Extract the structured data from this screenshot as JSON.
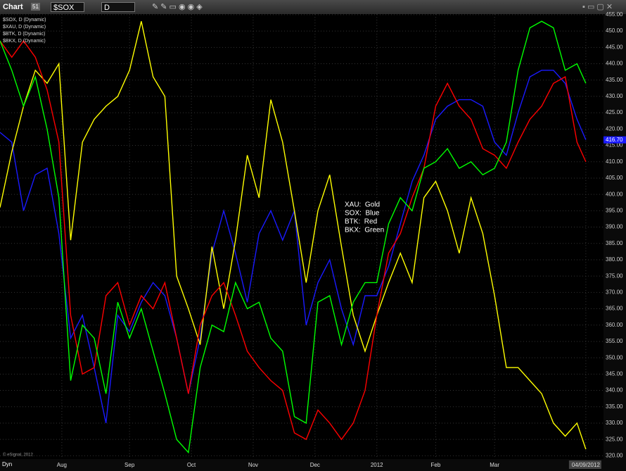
{
  "ui": {
    "window_title": "Chart",
    "badge": "51",
    "symbol": "$SOX",
    "interval": "D",
    "copyright": "© eSignal, 2012",
    "mode": "Dyn"
  },
  "chart_data": {
    "type": "line",
    "x": [
      0,
      4,
      8,
      12,
      16,
      20,
      24,
      28,
      32,
      36,
      40,
      44,
      48,
      52,
      56,
      60,
      64,
      68,
      72,
      76,
      80,
      84,
      88,
      92,
      96,
      100,
      104,
      108,
      112,
      116,
      120,
      124,
      128,
      132,
      136,
      140,
      144,
      148,
      152,
      156,
      160,
      164,
      168,
      172,
      176,
      180,
      184,
      188,
      192,
      196,
      199
    ],
    "series": [
      {
        "name": "$SOX, D (Dynamic)",
        "color": "#1a1aff",
        "values": [
          419,
          416,
          395,
          406,
          408,
          388,
          356,
          363,
          347,
          330,
          363,
          358,
          367,
          373,
          369,
          356,
          339,
          356,
          382,
          395,
          382,
          367,
          388,
          395,
          386,
          395,
          360,
          373,
          380,
          365,
          354,
          369,
          369,
          378,
          391,
          404,
          412,
          423,
          427,
          429,
          429,
          427,
          416,
          412,
          425,
          436,
          438,
          438,
          434,
          423,
          416.7
        ],
        "value_labels": [
          null,
          null,
          null,
          null,
          null,
          null,
          null,
          null,
          null,
          null,
          null,
          null,
          null,
          null,
          null,
          null,
          null,
          null,
          null,
          null,
          null,
          null,
          null,
          null,
          null,
          null,
          null,
          null,
          null,
          null,
          null,
          null,
          null,
          null,
          null,
          null,
          null,
          null,
          null,
          null,
          null,
          null,
          null,
          null,
          null,
          null,
          null,
          null,
          null,
          null,
          "416.70"
        ]
      },
      {
        "name": "$XAU, D (Dynamic)",
        "color": "#ffff00",
        "values": [
          396,
          413,
          427,
          438,
          434,
          440,
          386,
          416,
          423,
          427,
          430,
          438,
          453,
          436,
          430,
          375,
          365,
          354,
          384,
          365,
          386,
          412,
          399,
          429,
          416,
          395,
          373,
          395,
          406,
          384,
          363,
          352,
          363,
          373,
          382,
          373,
          399,
          404,
          395,
          382,
          399,
          388,
          369,
          347,
          347,
          343,
          339,
          330,
          326,
          330,
          322
        ]
      },
      {
        "name": "$BTK, D (Dynamic)",
        "color": "#ff0000",
        "values": [
          447,
          442,
          447,
          442,
          432,
          416,
          363,
          345,
          347,
          369,
          373,
          360,
          369,
          365,
          373,
          356,
          339,
          360,
          369,
          373,
          363,
          352,
          347,
          343,
          340,
          327,
          325,
          334,
          330,
          325,
          330,
          340,
          363,
          382,
          388,
          399,
          408,
          427,
          434,
          427,
          423,
          414,
          412,
          408,
          416,
          423,
          427,
          434,
          436,
          416,
          410
        ]
      },
      {
        "name": "$BKX, D (Dynamic)",
        "color": "#00ff00",
        "values": [
          447,
          438,
          427,
          436,
          420,
          399,
          343,
          360,
          356,
          339,
          367,
          356,
          365,
          352,
          339,
          325,
          321,
          347,
          360,
          358,
          373,
          365,
          367,
          356,
          352,
          332,
          330,
          367,
          369,
          354,
          367,
          373,
          373,
          391,
          399,
          395,
          408,
          410,
          414,
          408,
          410,
          406,
          408,
          416,
          438,
          451,
          453,
          451,
          438,
          440,
          434
        ]
      }
    ],
    "annotations": [
      "XAU:  Gold",
      "SOX:  Blue",
      "BTK:  Red",
      "BKX:  Green"
    ],
    "xlim": [
      0,
      205
    ],
    "xticks": [
      {
        "value": 21,
        "label": "Aug"
      },
      {
        "value": 44,
        "label": "Sep"
      },
      {
        "value": 65,
        "label": "Oct"
      },
      {
        "value": 86,
        "label": "Nov"
      },
      {
        "value": 107,
        "label": "Dec"
      },
      {
        "value": 128,
        "label": "2012"
      },
      {
        "value": 148,
        "label": "Feb"
      },
      {
        "value": 168,
        "label": "Mar"
      },
      {
        "value": 199,
        "label": "04/09/2012"
      }
    ],
    "ylim": [
      319,
      455.2
    ],
    "yticks": [
      {
        "value": 320,
        "label": "320.00"
      },
      {
        "value": 325,
        "label": "325.00"
      },
      {
        "value": 330,
        "label": "330.00"
      },
      {
        "value": 335,
        "label": "335.00"
      },
      {
        "value": 340,
        "label": "340.00"
      },
      {
        "value": 345,
        "label": "345.00"
      },
      {
        "value": 350,
        "label": "350.00"
      },
      {
        "value": 355,
        "label": "355.00"
      },
      {
        "value": 360,
        "label": "360.00"
      },
      {
        "value": 365,
        "label": "365.00"
      },
      {
        "value": 370,
        "label": "370.00"
      },
      {
        "value": 375,
        "label": "375.00"
      },
      {
        "value": 380,
        "label": "380.00"
      },
      {
        "value": 385,
        "label": "385.00"
      },
      {
        "value": 390,
        "label": "390.00"
      },
      {
        "value": 395,
        "label": "395.00"
      },
      {
        "value": 400,
        "label": "400.00"
      },
      {
        "value": 405,
        "label": "405.00"
      },
      {
        "value": 410,
        "label": "410.00"
      },
      {
        "value": 415,
        "label": "415.00"
      },
      {
        "value": 420,
        "label": "420.00"
      },
      {
        "value": 425,
        "label": "425.00"
      },
      {
        "value": 430,
        "label": "430.00"
      },
      {
        "value": 435,
        "label": "435.00"
      },
      {
        "value": 440,
        "label": "440.00"
      },
      {
        "value": 445,
        "label": "445.00"
      },
      {
        "value": 450,
        "label": "450.00"
      },
      {
        "value": 455,
        "label": "455.00"
      }
    ],
    "grid": true
  }
}
